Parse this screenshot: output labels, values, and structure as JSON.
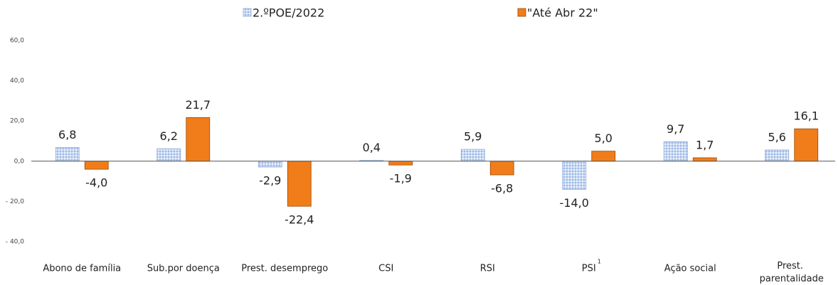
{
  "chart_data": {
    "type": "bar",
    "categories": [
      "Abono de família",
      "Sub.por doença",
      "Prest. desemprego",
      "CSI",
      "RSI",
      "PSI",
      "Ação social",
      "Prest. parentalidade"
    ],
    "category_superscripts": [
      null,
      null,
      null,
      null,
      null,
      "1",
      null,
      null
    ],
    "series": [
      {
        "name": "2.ºPOE/2022",
        "color": "#a9c4ec",
        "edge": "#8eaadb",
        "pattern": "dots",
        "values": [
          6.8,
          6.2,
          -2.9,
          0.4,
          5.9,
          -14.0,
          9.7,
          5.6
        ],
        "value_labels": [
          "6,8",
          "6,2",
          "-2,9",
          "0,4",
          "5,9",
          "-14,0",
          "9,7",
          "5,6"
        ]
      },
      {
        "name": "\"Até Abr 22\"",
        "color": "#f07d1a",
        "edge": "#9a4a08",
        "values": [
          -4.0,
          21.7,
          -22.4,
          -1.9,
          -6.8,
          5.0,
          1.7,
          16.1
        ],
        "value_labels": [
          "-4,0",
          "21,7",
          "-22,4",
          "-1,9",
          "-6,8",
          "5,0",
          "1,7",
          "16,1"
        ]
      }
    ],
    "ylim": [
      -40,
      60
    ],
    "yticks": [
      {
        "value": -40,
        "label": "- 40,0"
      },
      {
        "value": -20,
        "label": "- 20,0"
      },
      {
        "value": 0,
        "label": "0,0"
      },
      {
        "value": 20,
        "label": "20,0"
      },
      {
        "value": 40,
        "label": "40,0"
      },
      {
        "value": 60,
        "label": "60,0"
      }
    ],
    "legend": "top"
  }
}
